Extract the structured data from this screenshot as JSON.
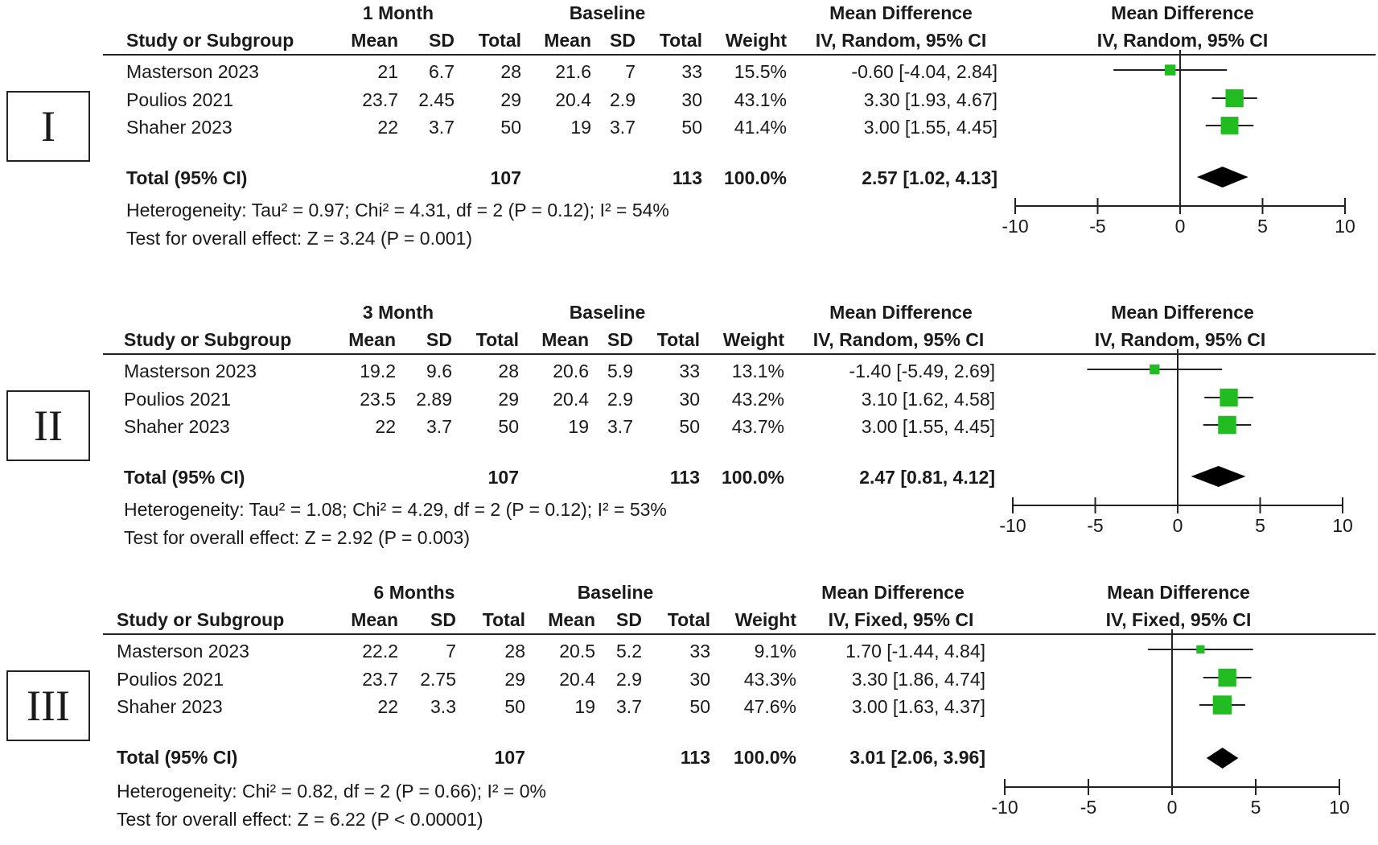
{
  "chart_data": [
    {
      "type": "forest",
      "panel_label": "I",
      "experimental_group": "1 Month",
      "control_group": "Baseline",
      "columns": [
        "Study or Subgroup",
        "Mean",
        "SD",
        "Total",
        "Mean",
        "SD",
        "Total",
        "Weight",
        "IV, Random, 95% CI"
      ],
      "effect_title": "Mean Difference",
      "effect_subtitle": "IV, Random, 95% CI",
      "studies": [
        {
          "name": "Masterson 2023",
          "exp_mean": "21",
          "exp_sd": "6.7",
          "exp_total": "28",
          "ctl_mean": "21.6",
          "ctl_sd": "7",
          "ctl_total": "33",
          "weight": "15.5%",
          "ci_text": "-0.60 [-4.04, 2.84]",
          "md": -0.6,
          "lo": -4.04,
          "hi": 2.84,
          "w": 15.5
        },
        {
          "name": "Poulios 2021",
          "exp_mean": "23.7",
          "exp_sd": "2.45",
          "exp_total": "29",
          "ctl_mean": "20.4",
          "ctl_sd": "2.9",
          "ctl_total": "30",
          "weight": "43.1%",
          "ci_text": "3.30 [1.93, 4.67]",
          "md": 3.3,
          "lo": 1.93,
          "hi": 4.67,
          "w": 43.1
        },
        {
          "name": "Shaher 2023",
          "exp_mean": "22",
          "exp_sd": "3.7",
          "exp_total": "50",
          "ctl_mean": "19",
          "ctl_sd": "3.7",
          "ctl_total": "50",
          "weight": "41.4%",
          "ci_text": "3.00 [1.55, 4.45]",
          "md": 3.0,
          "lo": 1.55,
          "hi": 4.45,
          "w": 41.4
        }
      ],
      "total": {
        "label": "Total (95% CI)",
        "exp_total": "107",
        "ctl_total": "113",
        "weight": "100.0%",
        "ci_text": "2.57 [1.02, 4.13]",
        "md": 2.57,
        "lo": 1.02,
        "hi": 4.13
      },
      "heterogeneity": "Heterogeneity: Tau² = 0.97; Chi² = 4.31, df = 2 (P = 0.12); I² = 54%",
      "overall_effect": "Test for overall effect: Z = 3.24 (P = 0.001)",
      "xlim": [
        -10,
        10
      ],
      "xticks": [
        -10,
        -5,
        0,
        5,
        10
      ],
      "xtick_labels": [
        "-10",
        "-5",
        "0",
        "5",
        "10"
      ],
      "marker_color": "#22bb22"
    },
    {
      "type": "forest",
      "panel_label": "II",
      "experimental_group": "3 Month",
      "control_group": "Baseline",
      "columns": [
        "Study or Subgroup",
        "Mean",
        "SD",
        "Total",
        "Mean",
        "SD",
        "Total",
        "Weight",
        "IV, Random, 95% CI"
      ],
      "effect_title": "Mean Difference",
      "effect_subtitle": "IV, Random, 95% CI",
      "studies": [
        {
          "name": "Masterson 2023",
          "exp_mean": "19.2",
          "exp_sd": "9.6",
          "exp_total": "28",
          "ctl_mean": "20.6",
          "ctl_sd": "5.9",
          "ctl_total": "33",
          "weight": "13.1%",
          "ci_text": "-1.40 [-5.49, 2.69]",
          "md": -1.4,
          "lo": -5.49,
          "hi": 2.69,
          "w": 13.1
        },
        {
          "name": "Poulios 2021",
          "exp_mean": "23.5",
          "exp_sd": "2.89",
          "exp_total": "29",
          "ctl_mean": "20.4",
          "ctl_sd": "2.9",
          "ctl_total": "30",
          "weight": "43.2%",
          "ci_text": "3.10 [1.62, 4.58]",
          "md": 3.1,
          "lo": 1.62,
          "hi": 4.58,
          "w": 43.2
        },
        {
          "name": "Shaher 2023",
          "exp_mean": "22",
          "exp_sd": "3.7",
          "exp_total": "50",
          "ctl_mean": "19",
          "ctl_sd": "3.7",
          "ctl_total": "50",
          "weight": "43.7%",
          "ci_text": "3.00 [1.55, 4.45]",
          "md": 3.0,
          "lo": 1.55,
          "hi": 4.45,
          "w": 43.7
        }
      ],
      "total": {
        "label": "Total (95% CI)",
        "exp_total": "107",
        "ctl_total": "113",
        "weight": "100.0%",
        "ci_text": "2.47 [0.81, 4.12]",
        "md": 2.47,
        "lo": 0.81,
        "hi": 4.12
      },
      "heterogeneity": "Heterogeneity: Tau² = 1.08; Chi² = 4.29, df = 2 (P = 0.12); I² = 53%",
      "overall_effect": "Test for overall effect: Z = 2.92 (P = 0.003)",
      "xlim": [
        -10,
        10
      ],
      "xticks": [
        -10,
        -5,
        0,
        5,
        10
      ],
      "xtick_labels": [
        "-10",
        "-5",
        "0",
        "5",
        "10"
      ],
      "marker_color": "#22bb22"
    },
    {
      "type": "forest",
      "panel_label": "III",
      "experimental_group": "6 Months",
      "control_group": "Baseline",
      "columns": [
        "Study or Subgroup",
        "Mean",
        "SD",
        "Total",
        "Mean",
        "SD",
        "Total",
        "Weight",
        "IV, Fixed, 95% CI"
      ],
      "effect_title": "Mean Difference",
      "effect_subtitle": "IV, Fixed, 95% CI",
      "studies": [
        {
          "name": "Masterson 2023",
          "exp_mean": "22.2",
          "exp_sd": "7",
          "exp_total": "28",
          "ctl_mean": "20.5",
          "ctl_sd": "5.2",
          "ctl_total": "33",
          "weight": "9.1%",
          "ci_text": "1.70 [-1.44, 4.84]",
          "md": 1.7,
          "lo": -1.44,
          "hi": 4.84,
          "w": 9.1
        },
        {
          "name": "Poulios 2021",
          "exp_mean": "23.7",
          "exp_sd": "2.75",
          "exp_total": "29",
          "ctl_mean": "20.4",
          "ctl_sd": "2.9",
          "ctl_total": "30",
          "weight": "43.3%",
          "ci_text": "3.30 [1.86, 4.74]",
          "md": 3.3,
          "lo": 1.86,
          "hi": 4.74,
          "w": 43.3
        },
        {
          "name": "Shaher 2023",
          "exp_mean": "22",
          "exp_sd": "3.3",
          "exp_total": "50",
          "ctl_mean": "19",
          "ctl_sd": "3.7",
          "ctl_total": "50",
          "weight": "47.6%",
          "ci_text": "3.00 [1.63, 4.37]",
          "md": 3.0,
          "lo": 1.63,
          "hi": 4.37,
          "w": 47.6
        }
      ],
      "total": {
        "label": "Total (95% CI)",
        "exp_total": "107",
        "ctl_total": "113",
        "weight": "100.0%",
        "ci_text": "3.01 [2.06, 3.96]",
        "md": 3.01,
        "lo": 2.06,
        "hi": 3.96
      },
      "heterogeneity": "Heterogeneity: Chi² = 0.82, df = 2 (P = 0.66); I² = 0%",
      "overall_effect": "Test for overall effect: Z = 6.22 (P < 0.00001)",
      "xlim": [
        -10,
        10
      ],
      "xticks": [
        -10,
        -5,
        0,
        5,
        10
      ],
      "xtick_labels": [
        "-10",
        "-5",
        "0",
        "5",
        "10"
      ],
      "marker_color": "#22bb22"
    }
  ]
}
